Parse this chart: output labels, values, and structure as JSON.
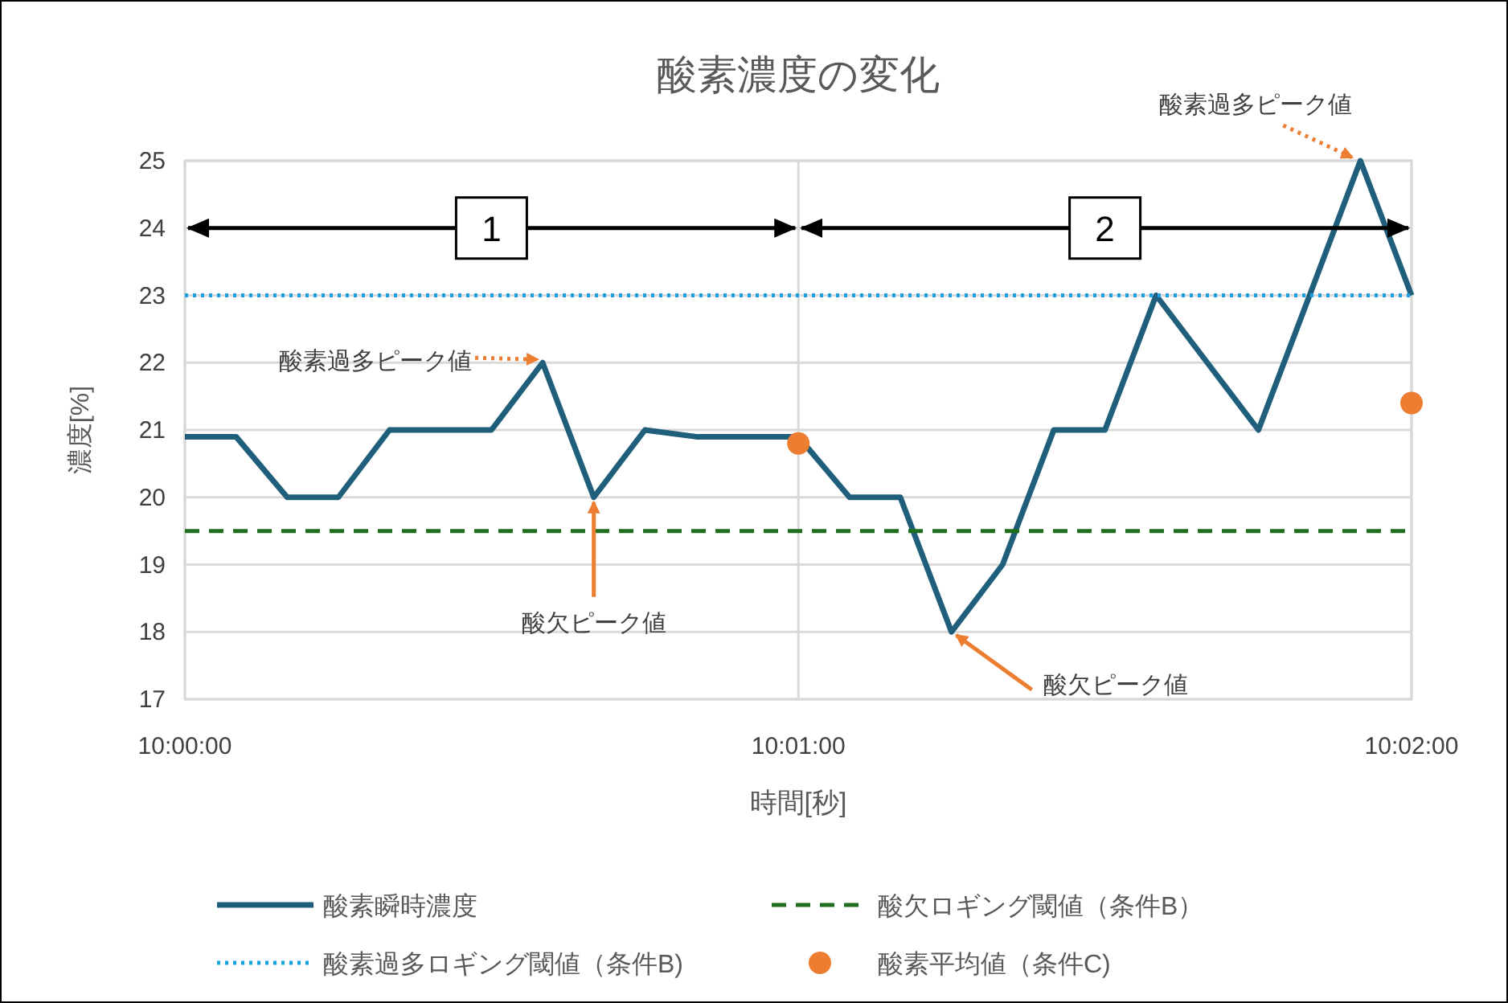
{
  "chart_data": {
    "type": "line",
    "title": "酸素濃度の変化",
    "xlabel": "時間[秒]",
    "ylabel": "濃度[%]",
    "xlim": [
      10,
      10.03333
    ],
    "xticks": [
      {
        "value": 10,
        "label": "10:00:00"
      },
      {
        "value": 10.01667,
        "label": "10:01:00"
      },
      {
        "value": 10.03333,
        "label": "10:02:00"
      }
    ],
    "ylim": [
      17,
      25
    ],
    "yticks": [
      17,
      18,
      19,
      20,
      21,
      22,
      23,
      24,
      25
    ],
    "grid": true,
    "legend": "bottom",
    "series": [
      {
        "name": "酸素瞬時濃度",
        "type": "line",
        "color": "#1f5f7c",
        "line_style": "solid",
        "marker": "none",
        "x": [
          10,
          10.00139,
          10.00278,
          10.00417,
          10.00556,
          10.00694,
          10.00833,
          10.00972,
          10.01111,
          10.0125,
          10.01389,
          10.01528,
          10.01667,
          10.01806,
          10.01944,
          10.02083,
          10.02222,
          10.02361,
          10.025,
          10.02639,
          10.02778,
          10.02917,
          10.03056,
          10.03194,
          10.03333
        ],
        "values": [
          20.9,
          20.9,
          20,
          20,
          21,
          21,
          21,
          22,
          20,
          21,
          20.9,
          20.9,
          20.9,
          20,
          20,
          18,
          19,
          21,
          21,
          23,
          22,
          21,
          23,
          25,
          23
        ]
      },
      {
        "name": "酸欠ロギング閾値（条件B）",
        "type": "line",
        "color": "#1e6e1e",
        "line_style": "dashed",
        "marker": "none",
        "x": [
          10,
          10.03333
        ],
        "values": [
          19.5,
          19.5
        ]
      },
      {
        "name": "酸素過多ロギング閾値（条件B)",
        "type": "line",
        "color": "#1ba1e2",
        "line_style": "dotted",
        "marker": "none",
        "x": [
          10,
          10.03333
        ],
        "values": [
          23,
          23
        ]
      },
      {
        "name": "酸素平均値（条件C)",
        "type": "scatter",
        "color": "#ed7d31",
        "marker": "circle",
        "x": [
          10.01667,
          10.03333
        ],
        "values": [
          20.8,
          21.4
        ]
      }
    ],
    "annotations": [
      {
        "text": "酸素過多ピーク値",
        "x": 10.00972,
        "y": 22
      },
      {
        "text": "酸欠ピーク値",
        "x": 10.01111,
        "y": 20
      },
      {
        "text": "酸欠ピーク値",
        "x": 10.02083,
        "y": 18
      },
      {
        "text": "酸素過多ピーク値",
        "x": 10.03194,
        "y": 25
      },
      {
        "text": "1",
        "x": 10.00833,
        "y": 24
      },
      {
        "text": "2",
        "x": 10.025,
        "y": 24
      }
    ]
  }
}
